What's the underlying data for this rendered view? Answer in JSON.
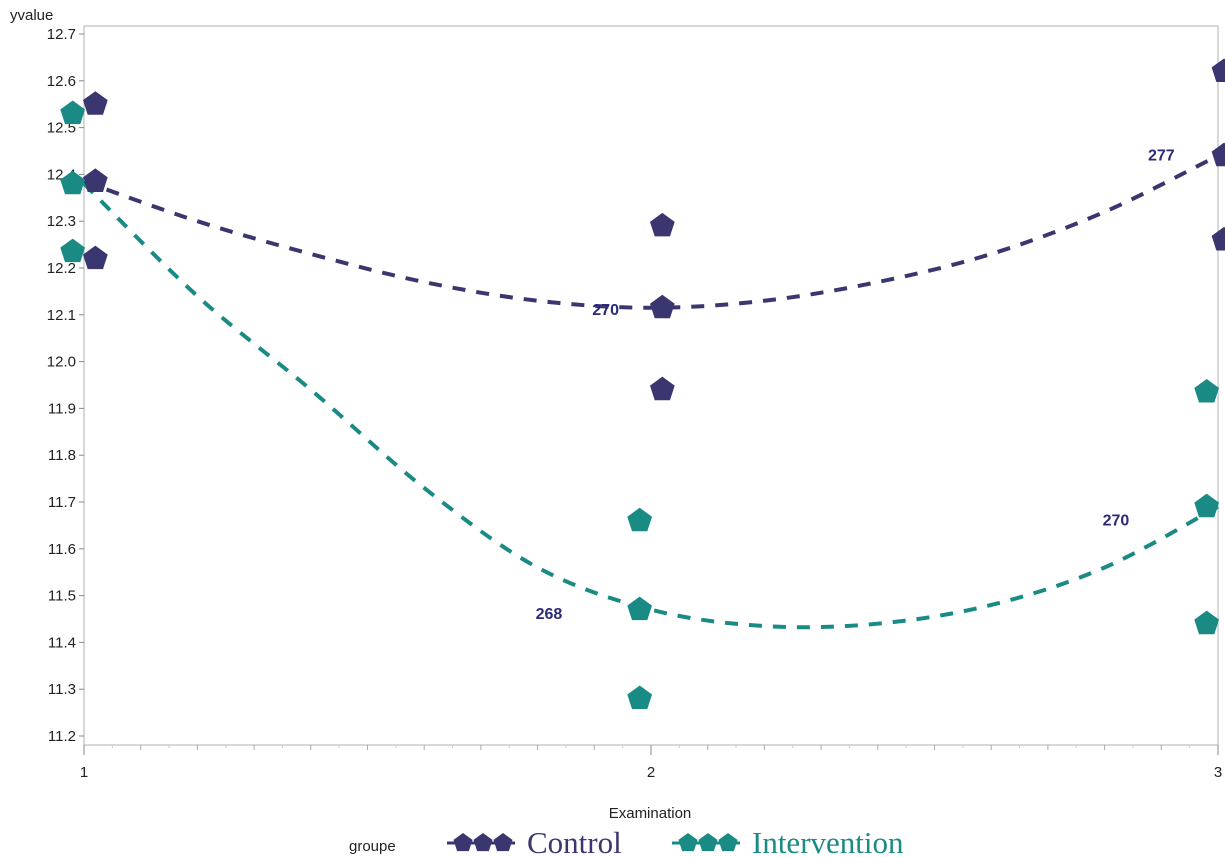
{
  "chart_data": {
    "type": "scatter",
    "ylabel": "yvalue",
    "xlabel": "Examination",
    "xlim": [
      1,
      3
    ],
    "ylim": [
      11.2,
      12.7
    ],
    "x_ticks": [
      "1",
      "2",
      "3"
    ],
    "y_ticks": [
      "11.2",
      "11.3",
      "11.4",
      "11.5",
      "11.6",
      "11.7",
      "11.8",
      "11.9",
      "12.0",
      "12.1",
      "12.2",
      "12.3",
      "12.4",
      "12.5",
      "12.6",
      "12.7"
    ],
    "grid": false,
    "legend": {
      "title": "groupe",
      "position": "bottom"
    },
    "series": [
      {
        "name": "Control",
        "color": "#3a3670",
        "marker": "pentagon",
        "points": [
          {
            "x": 1.02,
            "y": 12.55
          },
          {
            "x": 1.02,
            "y": 12.385
          },
          {
            "x": 1.02,
            "y": 12.22
          },
          {
            "x": 2.02,
            "y": 12.29
          },
          {
            "x": 2.02,
            "y": 12.115
          },
          {
            "x": 2.02,
            "y": 11.94
          },
          {
            "x": 3.02,
            "y": 12.62
          },
          {
            "x": 3.02,
            "y": 12.44
          },
          {
            "x": 3.02,
            "y": 12.26
          }
        ],
        "curve": [
          {
            "x": 1.0,
            "y": 12.385
          },
          {
            "x": 1.2,
            "y": 12.3
          },
          {
            "x": 1.4,
            "y": 12.23
          },
          {
            "x": 1.6,
            "y": 12.17
          },
          {
            "x": 1.8,
            "y": 12.13
          },
          {
            "x": 2.0,
            "y": 12.115
          },
          {
            "x": 2.2,
            "y": 12.13
          },
          {
            "x": 2.4,
            "y": 12.17
          },
          {
            "x": 2.6,
            "y": 12.23
          },
          {
            "x": 2.8,
            "y": 12.32
          },
          {
            "x": 3.0,
            "y": 12.44
          }
        ],
        "labels": [
          {
            "x": 1.92,
            "y": 12.1,
            "text": "270"
          },
          {
            "x": 2.9,
            "y": 12.43,
            "text": "277"
          }
        ]
      },
      {
        "name": "Intervention",
        "color": "#1a8a84",
        "marker": "pentagon",
        "points": [
          {
            "x": 0.98,
            "y": 12.53
          },
          {
            "x": 0.98,
            "y": 12.38
          },
          {
            "x": 0.98,
            "y": 12.235
          },
          {
            "x": 1.98,
            "y": 11.66
          },
          {
            "x": 1.98,
            "y": 11.47
          },
          {
            "x": 1.98,
            "y": 11.28
          },
          {
            "x": 2.98,
            "y": 11.935
          },
          {
            "x": 2.98,
            "y": 11.69
          },
          {
            "x": 2.98,
            "y": 11.44
          }
        ],
        "curve": [
          {
            "x": 1.0,
            "y": 12.38
          },
          {
            "x": 1.2,
            "y": 12.14
          },
          {
            "x": 1.4,
            "y": 11.94
          },
          {
            "x": 1.6,
            "y": 11.73
          },
          {
            "x": 1.8,
            "y": 11.56
          },
          {
            "x": 2.0,
            "y": 11.47
          },
          {
            "x": 2.2,
            "y": 11.435
          },
          {
            "x": 2.4,
            "y": 11.44
          },
          {
            "x": 2.6,
            "y": 11.48
          },
          {
            "x": 2.8,
            "y": 11.56
          },
          {
            "x": 3.0,
            "y": 11.69
          }
        ],
        "labels": [
          {
            "x": 1.82,
            "y": 11.45,
            "text": "268"
          },
          {
            "x": 2.82,
            "y": 11.65,
            "text": "270"
          }
        ]
      }
    ]
  }
}
